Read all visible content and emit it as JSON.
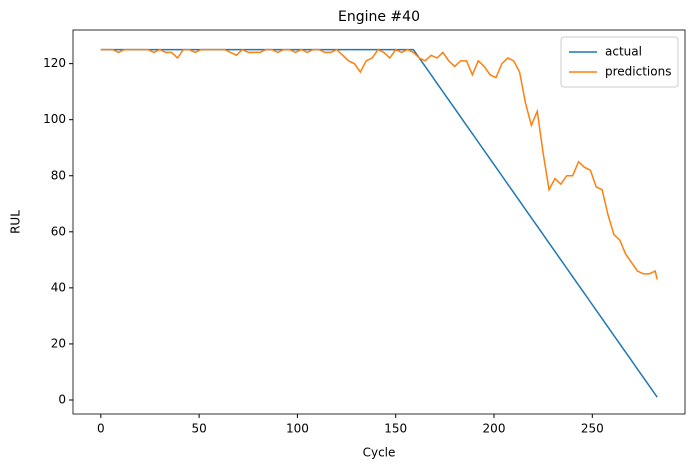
{
  "chart_data": {
    "type": "line",
    "title": "Engine #40",
    "x_label": "Cycle",
    "y_label": "RUL",
    "x": [
      0,
      3,
      6,
      9,
      12,
      15,
      18,
      21,
      24,
      27,
      30,
      33,
      36,
      39,
      42,
      45,
      48,
      51,
      54,
      57,
      60,
      63,
      66,
      69,
      72,
      75,
      78,
      81,
      84,
      87,
      90,
      93,
      96,
      99,
      102,
      105,
      108,
      111,
      114,
      117,
      120,
      123,
      126,
      129,
      132,
      135,
      138,
      141,
      144,
      147,
      150,
      153,
      156,
      159,
      162,
      165,
      168,
      171,
      174,
      177,
      180,
      183,
      186,
      189,
      192,
      195,
      198,
      201,
      204,
      207,
      210,
      213,
      216,
      219,
      222,
      225,
      228,
      231,
      234,
      237,
      240,
      243,
      246,
      249,
      252,
      255,
      258,
      261,
      264,
      267,
      270,
      273,
      276,
      279,
      282,
      283
    ],
    "series": [
      {
        "name": "actual",
        "color": "#1f77b4",
        "values": [
          125,
          125,
          125,
          125,
          125,
          125,
          125,
          125,
          125,
          125,
          125,
          125,
          125,
          125,
          125,
          125,
          125,
          125,
          125,
          125,
          125,
          125,
          125,
          125,
          125,
          125,
          125,
          125,
          125,
          125,
          125,
          125,
          125,
          125,
          125,
          125,
          125,
          125,
          125,
          125,
          125,
          125,
          125,
          125,
          125,
          125,
          125,
          125,
          125,
          125,
          125,
          125,
          125,
          125,
          122,
          119,
          116,
          113,
          110,
          107,
          104,
          101,
          98,
          95,
          92,
          89,
          86,
          83,
          80,
          77,
          74,
          71,
          68,
          65,
          62,
          59,
          56,
          53,
          50,
          47,
          44,
          41,
          38,
          35,
          32,
          29,
          26,
          23,
          20,
          17,
          14,
          11,
          8,
          5,
          2,
          1
        ]
      },
      {
        "name": "predictions",
        "color": "#ff7f0e",
        "values": [
          125,
          125,
          125,
          124,
          125,
          125,
          125,
          125,
          125,
          124,
          125,
          124,
          124,
          122,
          125,
          125,
          124,
          125,
          125,
          125,
          125,
          125,
          124,
          123,
          125,
          124,
          124,
          124,
          125,
          125,
          124,
          125,
          125,
          124,
          125,
          124,
          125,
          125,
          124,
          124,
          125,
          123,
          121,
          120,
          117,
          121,
          122,
          125,
          124,
          122,
          125,
          124,
          125,
          124,
          122,
          121,
          123,
          122,
          124,
          121,
          119,
          121,
          121,
          116,
          121,
          119,
          116,
          115,
          120,
          122,
          121,
          117,
          106,
          98,
          103,
          88,
          75,
          79,
          77,
          80,
          80,
          85,
          83,
          82,
          76,
          75,
          66,
          59,
          57,
          52,
          49,
          46,
          45,
          45,
          46,
          43
        ]
      }
    ],
    "xlim": [
      -14.15,
      297.15
    ],
    "ylim": [
      -5,
      132
    ],
    "xticks": [
      0,
      50,
      100,
      150,
      200,
      250
    ],
    "yticks": [
      0,
      20,
      40,
      60,
      80,
      100,
      120
    ],
    "legend": "upper right"
  }
}
